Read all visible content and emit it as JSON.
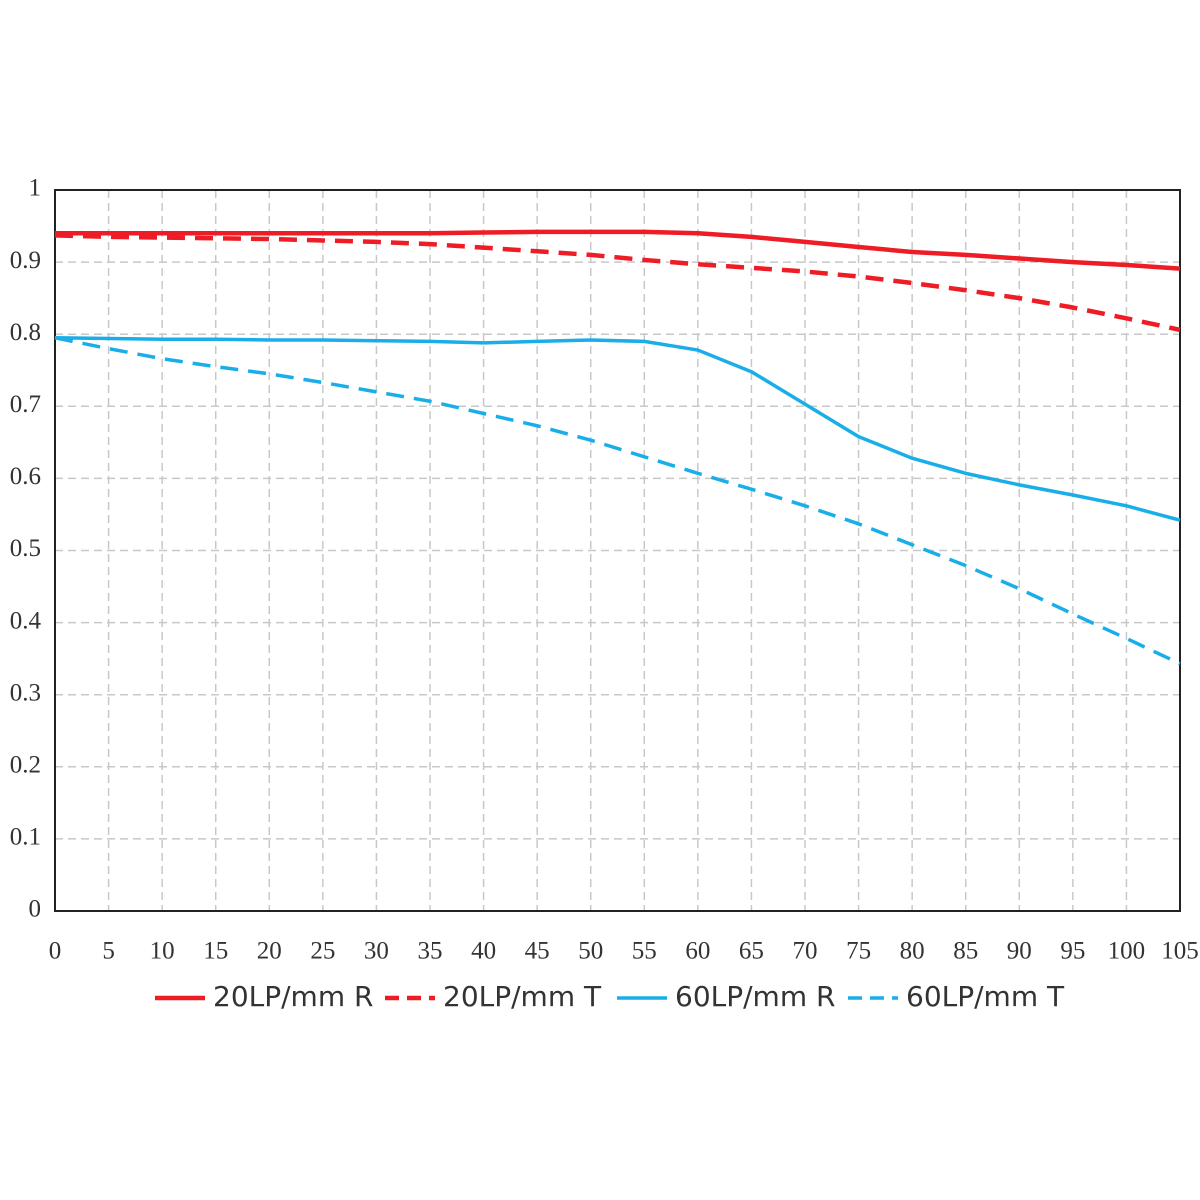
{
  "chart_data": {
    "type": "line",
    "x": [
      0,
      5,
      10,
      15,
      20,
      25,
      30,
      35,
      40,
      45,
      50,
      55,
      60,
      65,
      70,
      75,
      80,
      85,
      90,
      95,
      100,
      105
    ],
    "series": [
      {
        "name": "20LP/mm R",
        "color": "#ee1c25",
        "dash": false,
        "values": [
          0.94,
          0.94,
          0.94,
          0.94,
          0.94,
          0.94,
          0.94,
          0.94,
          0.941,
          0.942,
          0.942,
          0.942,
          0.94,
          0.935,
          0.928,
          0.921,
          0.914,
          0.91,
          0.905,
          0.9,
          0.896,
          0.891
        ]
      },
      {
        "name": "20LP/mm T",
        "color": "#ee1c25",
        "dash": true,
        "values": [
          0.937,
          0.935,
          0.934,
          0.933,
          0.932,
          0.93,
          0.928,
          0.925,
          0.92,
          0.915,
          0.91,
          0.903,
          0.897,
          0.892,
          0.887,
          0.88,
          0.871,
          0.861,
          0.85,
          0.837,
          0.822,
          0.806
        ]
      },
      {
        "name": "60LP/mm R",
        "color": "#1aaee8",
        "dash": false,
        "values": [
          0.795,
          0.794,
          0.793,
          0.793,
          0.792,
          0.792,
          0.791,
          0.79,
          0.788,
          0.79,
          0.792,
          0.79,
          0.778,
          0.748,
          0.703,
          0.658,
          0.628,
          0.607,
          0.591,
          0.577,
          0.562,
          0.542
        ]
      },
      {
        "name": "60LP/mm T",
        "color": "#1aaee8",
        "dash": true,
        "values": [
          0.795,
          0.78,
          0.766,
          0.755,
          0.745,
          0.733,
          0.72,
          0.707,
          0.69,
          0.673,
          0.653,
          0.63,
          0.607,
          0.585,
          0.562,
          0.537,
          0.508,
          0.479,
          0.447,
          0.412,
          0.378,
          0.343
        ]
      }
    ],
    "xlim": [
      0,
      105
    ],
    "xticks": [
      0,
      5,
      10,
      15,
      20,
      25,
      30,
      35,
      40,
      45,
      50,
      55,
      60,
      65,
      70,
      75,
      80,
      85,
      90,
      95,
      100,
      105
    ],
    "ylim": [
      0,
      1
    ],
    "yticks": [
      0,
      0.1,
      0.2,
      0.3,
      0.4,
      0.5,
      0.6,
      0.7,
      0.8,
      0.9,
      1
    ],
    "grid": true
  }
}
